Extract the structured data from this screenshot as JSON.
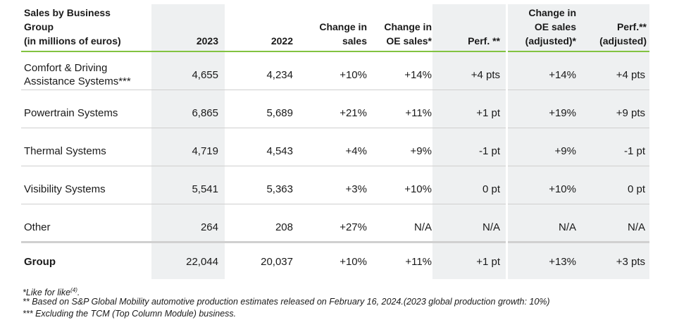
{
  "headers": {
    "label_line1": "Sales by Business",
    "label_line2": "Group",
    "label_line3": "(in millions of euros)",
    "y2023": "2023",
    "y2022": "2022",
    "change_sales_l1": "Change in",
    "change_sales_l2": "sales",
    "change_oe_l1": "Change in",
    "change_oe_l2": "OE sales*",
    "perf": "Perf. **",
    "change_oe_adj_l1": "Change in",
    "change_oe_adj_l2": "OE sales",
    "change_oe_adj_l3": "(adjusted)*",
    "perf_adj_l1": "Perf.**",
    "perf_adj_l2": "(adjusted)"
  },
  "rows": [
    {
      "name_l1": "Comfort & Driving",
      "name_l2": "Assistance Systems***",
      "y2023": "4,655",
      "y2022": "4,234",
      "change_sales": "+10%",
      "change_oe": "+14%",
      "perf": "+4 pts",
      "change_oe_adj": "+14%",
      "perf_adj": "+4 pts"
    },
    {
      "name_l1": "Powertrain Systems",
      "y2023": "6,865",
      "y2022": "5,689",
      "change_sales": "+21%",
      "change_oe": "+11%",
      "perf": "+1 pt",
      "change_oe_adj": "+19%",
      "perf_adj": "+9 pts"
    },
    {
      "name_l1": "Thermal Systems",
      "y2023": "4,719",
      "y2022": "4,543",
      "change_sales": "+4%",
      "change_oe": "+9%",
      "perf": "-1 pt",
      "change_oe_adj": "+9%",
      "perf_adj": "-1 pt"
    },
    {
      "name_l1": "Visibility Systems",
      "y2023": "5,541",
      "y2022": "5,363",
      "change_sales": "+3%",
      "change_oe": "+10%",
      "perf": "0 pt",
      "change_oe_adj": "+10%",
      "perf_adj": "0 pt"
    },
    {
      "name_l1": "Other",
      "y2023": "264",
      "y2022": "208",
      "change_sales": "+27%",
      "change_oe": "N/A",
      "perf": "N/A",
      "change_oe_adj": "N/A",
      "perf_adj": "N/A"
    },
    {
      "name_l1": "Group",
      "y2023": "22,044",
      "y2022": "20,037",
      "change_sales": "+10%",
      "change_oe": "+11%",
      "perf": "+1 pt",
      "change_oe_adj": "+13%",
      "perf_adj": "+3 pts"
    }
  ],
  "footnotes": {
    "f1_text": "*Like for like",
    "f1_sup": "(4)",
    "f1_end": ".",
    "f2": "** Based on S&P Global Mobility automotive production estimates released on February 16, 2024.(2023 global production growth: 10%)",
    "f3": "*** Excluding the TCM (Top Column Module) business."
  },
  "colors": {
    "accent_line": "#82c341",
    "shade": "#eef0f1"
  }
}
